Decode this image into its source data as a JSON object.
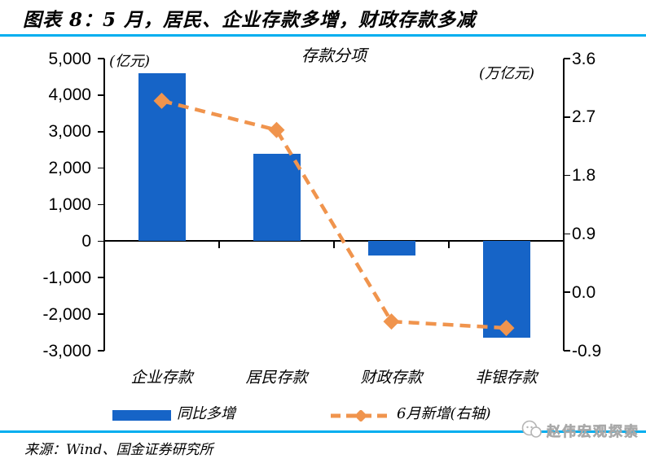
{
  "header": {
    "title": "图表 8：5 月，居民、企业存款多增，财政存款多减"
  },
  "chart_data": {
    "type": "bar",
    "subtype": "bar-line-combo",
    "title": "存款分项",
    "categories": [
      "企业存款",
      "居民存款",
      "财政存款",
      "非银存款"
    ],
    "left_axis": {
      "unit": "(亿元)",
      "min": -3000,
      "max": 5000,
      "ticks": [
        "5,000",
        "4,000",
        "3,000",
        "2,000",
        "1,000",
        "0",
        "-1,000",
        "-2,000",
        "-3,000"
      ]
    },
    "right_axis": {
      "unit": "(万亿元)",
      "min": -0.9,
      "max": 3.6,
      "ticks": [
        "3.6",
        "2.7",
        "1.8",
        "0.9",
        "0.0",
        "-0.9"
      ]
    },
    "series": [
      {
        "name": "同比多增",
        "type": "bar",
        "axis": "left",
        "values": [
          4600,
          2400,
          -400,
          -2650
        ]
      },
      {
        "name": "6月新增(右轴)",
        "type": "line",
        "axis": "right",
        "marker": "diamond",
        "values": [
          2.95,
          2.5,
          -0.45,
          -0.55
        ]
      }
    ],
    "grid": false,
    "legend_position": "bottom"
  },
  "footer": {
    "source": "来源：Wind、国金证券研究所",
    "watermark": "赵伟宏观探索"
  },
  "colors": {
    "bar": "#1664C7",
    "line": "#F0944D",
    "rule": "#00AEEF",
    "axis": "#000000",
    "watermark": "#C6C6C6"
  }
}
